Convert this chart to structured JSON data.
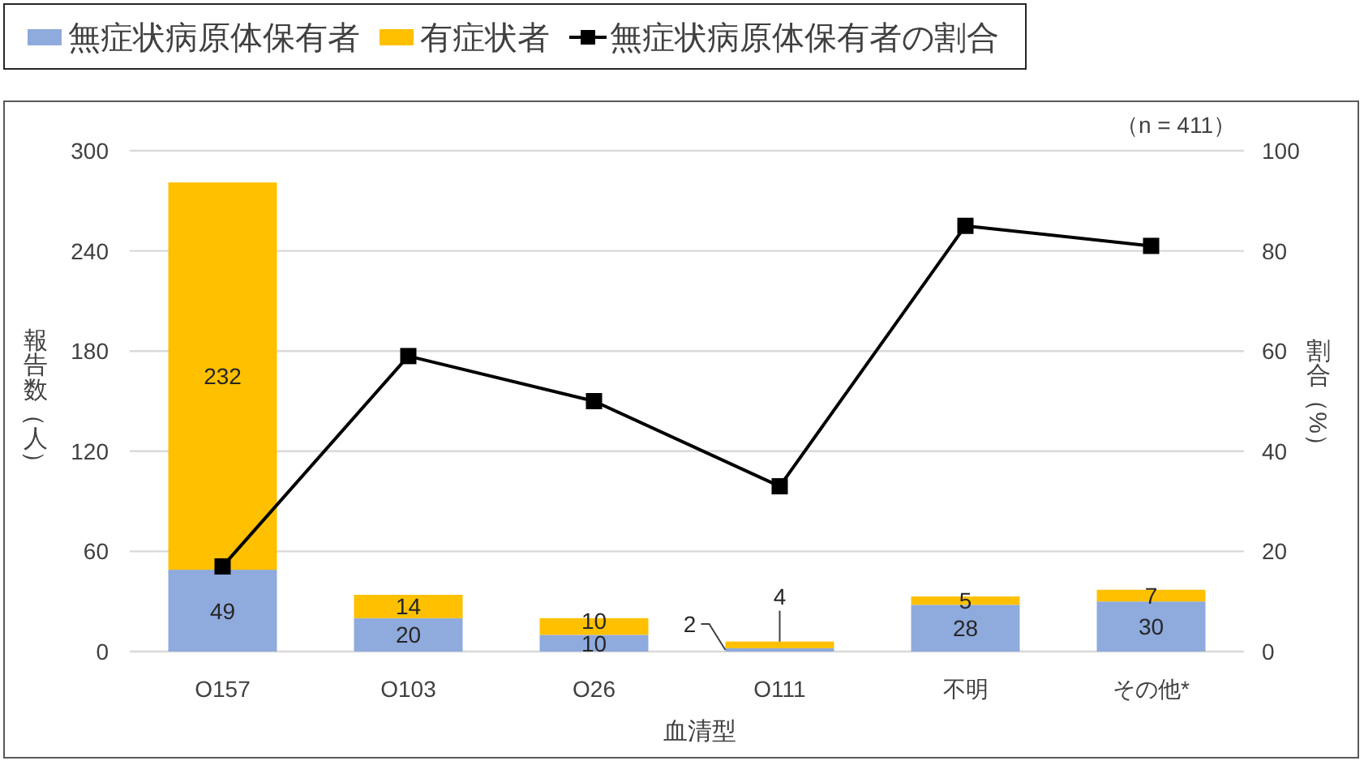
{
  "chart_data": {
    "type": "bar",
    "stacked": true,
    "categories": [
      "O157",
      "O103",
      "O26",
      "O111",
      "不明",
      "その他*"
    ],
    "series": [
      {
        "name": "無症状病原体保有者",
        "color": "#8faadc",
        "values": [
          49,
          20,
          10,
          2,
          28,
          30
        ],
        "value_labels": [
          "49",
          "20",
          "10",
          "2",
          "28",
          "30"
        ]
      },
      {
        "name": "有症状者",
        "color": "#ffc000",
        "values": [
          232,
          14,
          10,
          4,
          5,
          7
        ],
        "value_labels": [
          "232",
          "14",
          "10",
          "4",
          "5",
          "7"
        ]
      },
      {
        "name": "無症状病原体保有者の割合",
        "type": "line",
        "axis": "y2",
        "color": "#000000",
        "values": [
          17,
          59,
          50,
          33,
          85,
          81
        ]
      }
    ],
    "marker": "square",
    "line_style": "solid",
    "xlabel": "血清型",
    "ylabel": "報告数（人）",
    "y2label": "割合（%）",
    "ylim": [
      0,
      300
    ],
    "yticks": [
      0,
      60,
      120,
      180,
      240,
      300
    ],
    "y2lim": [
      0,
      100
    ],
    "y2ticks": [
      0,
      20,
      40,
      60,
      80,
      100
    ],
    "grid": "y",
    "legend": "top",
    "annotations": [
      "（n = 411）"
    ]
  }
}
